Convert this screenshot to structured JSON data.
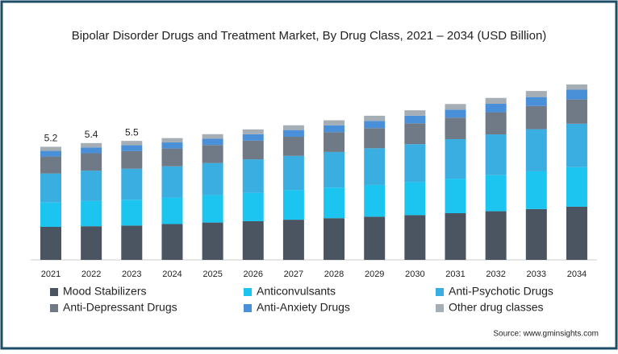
{
  "chart_data": {
    "type": "stacked-bar",
    "title": "Bipolar Disorder Drugs and Treatment Market, By Drug Class, 2021 – 2034 (USD Billion)",
    "categories": [
      "2021",
      "2022",
      "2023",
      "2024",
      "2025",
      "2026",
      "2027",
      "2028",
      "2029",
      "2030",
      "2031",
      "2032",
      "2033",
      "2034"
    ],
    "series": [
      {
        "name": "Mood Stabilizers",
        "color": "#4a5561",
        "values": [
          1.52,
          1.55,
          1.58,
          1.65,
          1.72,
          1.78,
          1.85,
          1.92,
          1.99,
          2.06,
          2.15,
          2.24,
          2.34,
          2.45
        ]
      },
      {
        "name": "Anticonvulsants",
        "color": "#1cc4f0",
        "values": [
          1.12,
          1.16,
          1.19,
          1.22,
          1.26,
          1.31,
          1.36,
          1.41,
          1.46,
          1.52,
          1.59,
          1.66,
          1.74,
          1.82
        ]
      },
      {
        "name": "Anti-Psychotic Drugs",
        "color": "#3aaee0",
        "values": [
          1.34,
          1.4,
          1.43,
          1.44,
          1.48,
          1.54,
          1.58,
          1.64,
          1.69,
          1.75,
          1.82,
          1.88,
          1.94,
          2.0
        ]
      },
      {
        "name": "Anti-Depressant Drugs",
        "color": "#6f7a86",
        "values": [
          0.78,
          0.8,
          0.81,
          0.82,
          0.83,
          0.86,
          0.88,
          0.91,
          0.93,
          0.96,
          0.99,
          1.02,
          1.07,
          1.12
        ]
      },
      {
        "name": "Anti-Anxiety Drugs",
        "color": "#4a90d9",
        "values": [
          0.26,
          0.27,
          0.27,
          0.28,
          0.29,
          0.3,
          0.31,
          0.32,
          0.33,
          0.35,
          0.37,
          0.39,
          0.41,
          0.45
        ]
      },
      {
        "name": "Other drug classes",
        "color": "#a5adb5",
        "values": [
          0.19,
          0.2,
          0.2,
          0.2,
          0.21,
          0.22,
          0.22,
          0.23,
          0.24,
          0.25,
          0.26,
          0.27,
          0.28,
          0.24
        ]
      }
    ],
    "total_labels": [
      "5.2",
      "5.4",
      "5.5"
    ],
    "source": "Source: www.gminsights.com"
  }
}
